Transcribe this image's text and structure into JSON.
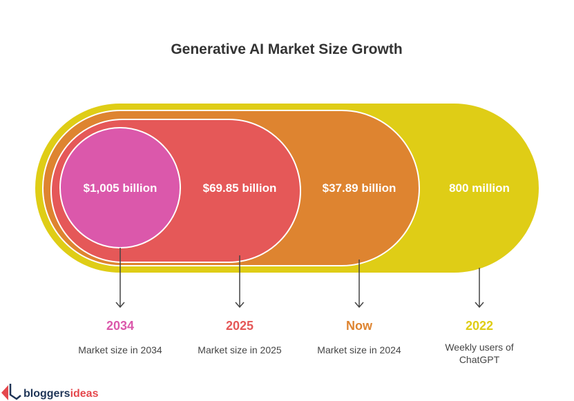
{
  "title": "Generative AI Market Size Growth",
  "colors": {
    "yellow": "#DFCD16",
    "orange": "#DE8430",
    "red": "#E55858",
    "pink": "#DB58AB",
    "logo_navy": "#1F3557",
    "logo_red": "#E5484D"
  },
  "items": [
    {
      "value": "$1,005 billion",
      "year": "2034",
      "desc": [
        "Market size in 2034"
      ],
      "color": "#DB58AB"
    },
    {
      "value": "$69.85 billion",
      "year": "2025",
      "desc": [
        "Market size in 2025"
      ],
      "color": "#E55858"
    },
    {
      "value": "$37.89 billion",
      "year": "Now",
      "desc": [
        "Market size in 2024"
      ],
      "color": "#DE8430"
    },
    {
      "value": "800 million",
      "year": "2022",
      "desc": [
        "Weekly users of",
        "ChatGPT"
      ],
      "color": "#DFCD16"
    }
  ],
  "logo": {
    "part1": "bloggers",
    "part2": "ideas"
  }
}
